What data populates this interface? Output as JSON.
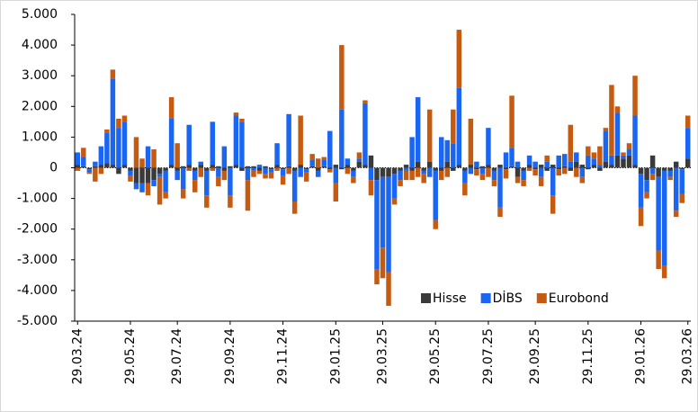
{
  "chart_data": {
    "type": "bar",
    "stacked": true,
    "categories": [
      "29.03.24",
      null,
      null,
      null,
      null,
      null,
      null,
      null,
      null,
      "29.05.24",
      null,
      null,
      null,
      null,
      null,
      null,
      null,
      "29.07.24",
      null,
      null,
      null,
      null,
      null,
      null,
      null,
      null,
      "29.09.24",
      null,
      null,
      null,
      null,
      null,
      null,
      null,
      null,
      "29.11.24",
      null,
      null,
      null,
      null,
      null,
      null,
      null,
      null,
      "29.01.25",
      null,
      null,
      null,
      null,
      null,
      null,
      null,
      "29.03.25",
      null,
      null,
      null,
      null,
      null,
      null,
      null,
      null,
      "29.05.25",
      null,
      null,
      null,
      null,
      null,
      null,
      null,
      null,
      "29.07.25",
      null,
      null,
      null,
      null,
      null,
      null,
      null,
      "29.09.25",
      null,
      null,
      null,
      null,
      null,
      null,
      null,
      null,
      "29.11.25",
      null,
      null,
      null,
      null,
      null,
      null,
      null,
      null,
      "29.01.26",
      null,
      null,
      null,
      null,
      null,
      null,
      null,
      "29.03.26"
    ],
    "series": [
      {
        "name": "Hisse",
        "color": "#3a3a3a",
        "values": [
          100,
          50,
          -50,
          50,
          100,
          150,
          100,
          -200,
          100,
          -100,
          -500,
          -500,
          -500,
          -400,
          -200,
          -100,
          100,
          -100,
          50,
          100,
          -100,
          100,
          -100,
          100,
          50,
          -100,
          50,
          100,
          -100,
          50,
          50,
          -100,
          50,
          -50,
          100,
          -50,
          50,
          -100,
          100,
          -50,
          50,
          -100,
          50,
          -50,
          100,
          -50,
          100,
          -100,
          200,
          100,
          400,
          -400,
          -300,
          -300,
          -200,
          -100,
          100,
          -100,
          200,
          -100,
          200,
          -100,
          -100,
          200,
          -100,
          100,
          -100,
          100,
          -50,
          50,
          100,
          -100,
          100,
          -50,
          50,
          -300,
          -100,
          100,
          -50,
          100,
          -100,
          100,
          -50,
          50,
          -100,
          200,
          100,
          -50,
          100,
          -100,
          200,
          100,
          400,
          300,
          400,
          100,
          -200,
          -400,
          400,
          -300,
          -100,
          -100,
          200,
          -50,
          300
        ]
      },
      {
        "name": "DİBS",
        "color": "#1a66f0",
        "values": [
          400,
          300,
          -100,
          150,
          600,
          1000,
          2800,
          1300,
          1400,
          -150,
          -200,
          -300,
          700,
          -200,
          -100,
          -700,
          1500,
          -300,
          -700,
          1300,
          -300,
          100,
          -800,
          1400,
          -300,
          700,
          -900,
          1600,
          1500,
          -400,
          -100,
          100,
          -200,
          -100,
          700,
          -200,
          1700,
          -1000,
          -300,
          -100,
          200,
          -200,
          200,
          1200,
          -500,
          1900,
          200,
          -200,
          100,
          2000,
          -400,
          -2900,
          -2300,
          -3100,
          -800,
          -300,
          -100,
          1000,
          2100,
          -100,
          -300,
          -1600,
          1000,
          700,
          800,
          2500,
          -400,
          -200,
          200,
          -200,
          1200,
          -300,
          -1300,
          500,
          600,
          200,
          -300,
          300,
          200,
          -300,
          200,
          -900,
          400,
          400,
          200,
          300,
          -300,
          400,
          200,
          100,
          1000,
          300,
          1400,
          100,
          200,
          1600,
          -1100,
          -400,
          -200,
          -2400,
          -3100,
          -200,
          -1400,
          -800,
          1000
        ]
      },
      {
        "name": "Eurobond",
        "color": "#c55a11",
        "values": [
          -100,
          300,
          -50,
          -450,
          -200,
          100,
          300,
          300,
          200,
          -200,
          1000,
          300,
          -400,
          600,
          -900,
          -200,
          700,
          800,
          -300,
          -100,
          -400,
          -300,
          -400,
          -100,
          -300,
          -300,
          -400,
          100,
          100,
          -1000,
          -200,
          -100,
          -150,
          -200,
          -100,
          -300,
          -200,
          -400,
          1600,
          -300,
          200,
          300,
          100,
          -100,
          -600,
          2100,
          -200,
          -200,
          200,
          100,
          -500,
          -500,
          -1000,
          -1100,
          -200,
          -200,
          -300,
          -300,
          -300,
          -300,
          1700,
          -300,
          -300,
          -300,
          1100,
          1900,
          -400,
          1500,
          -200,
          -200,
          -300,
          -200,
          -300,
          -300,
          1700,
          -200,
          -200,
          -100,
          -200,
          -300,
          200,
          -600,
          -200,
          -200,
          1200,
          -300,
          -200,
          300,
          200,
          600,
          100,
          2300,
          200,
          100,
          200,
          1300,
          -600,
          -200,
          -200,
          -600,
          -400,
          -100,
          -200,
          -300,
          400
        ]
      }
    ],
    "ylim": [
      -5000,
      5000
    ],
    "yticks": [
      {
        "value": -5000,
        "label": "-5.000"
      },
      {
        "value": -4000,
        "label": "-4.000"
      },
      {
        "value": -3000,
        "label": "-3.000"
      },
      {
        "value": -2000,
        "label": "-2.000"
      },
      {
        "value": -1000,
        "label": "-1.000"
      },
      0,
      {
        "value": 1000,
        "label": "1.000"
      },
      {
        "value": 2000,
        "label": "2.000"
      },
      {
        "value": 3000,
        "label": "3.000"
      },
      {
        "value": 4000,
        "label": "4.000"
      },
      {
        "value": 5000,
        "label": "5.000"
      }
    ],
    "legend": "lower-right"
  }
}
